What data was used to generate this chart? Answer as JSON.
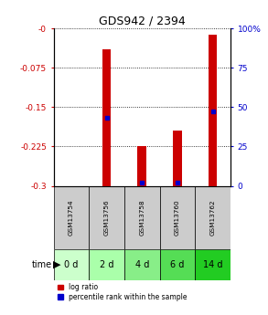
{
  "title": "GDS942 / 2394",
  "samples": [
    "GSM13754",
    "GSM13756",
    "GSM13758",
    "GSM13760",
    "GSM13762"
  ],
  "time_labels": [
    "0 d",
    "2 d",
    "4 d",
    "6 d",
    "14 d"
  ],
  "time_colors": [
    "#ccffcc",
    "#aaffaa",
    "#88ee88",
    "#55dd55",
    "#22cc22"
  ],
  "gsm_bg": "#cccccc",
  "ylim_left": [
    -0.3,
    0.0
  ],
  "ylim_right": [
    0,
    100
  ],
  "yticks_left": [
    0.0,
    -0.075,
    -0.15,
    -0.225,
    -0.3
  ],
  "yticks_left_labels": [
    "-0",
    "-0.075",
    "-0.15",
    "-0.225",
    "-0.3"
  ],
  "yticks_right": [
    100,
    75,
    50,
    25,
    0
  ],
  "yticks_right_labels": [
    "100%",
    "75",
    "50",
    "25",
    "0"
  ],
  "log_ratio": [
    null,
    -0.04,
    -0.225,
    -0.195,
    -0.012
  ],
  "bar_bottom": -0.3,
  "percentile_rank": [
    null,
    43,
    2,
    2,
    47
  ],
  "bar_color": "#cc0000",
  "blue_color": "#0000cc",
  "left_color": "#cc0000",
  "right_color": "#0000cc",
  "bar_width": 0.25
}
